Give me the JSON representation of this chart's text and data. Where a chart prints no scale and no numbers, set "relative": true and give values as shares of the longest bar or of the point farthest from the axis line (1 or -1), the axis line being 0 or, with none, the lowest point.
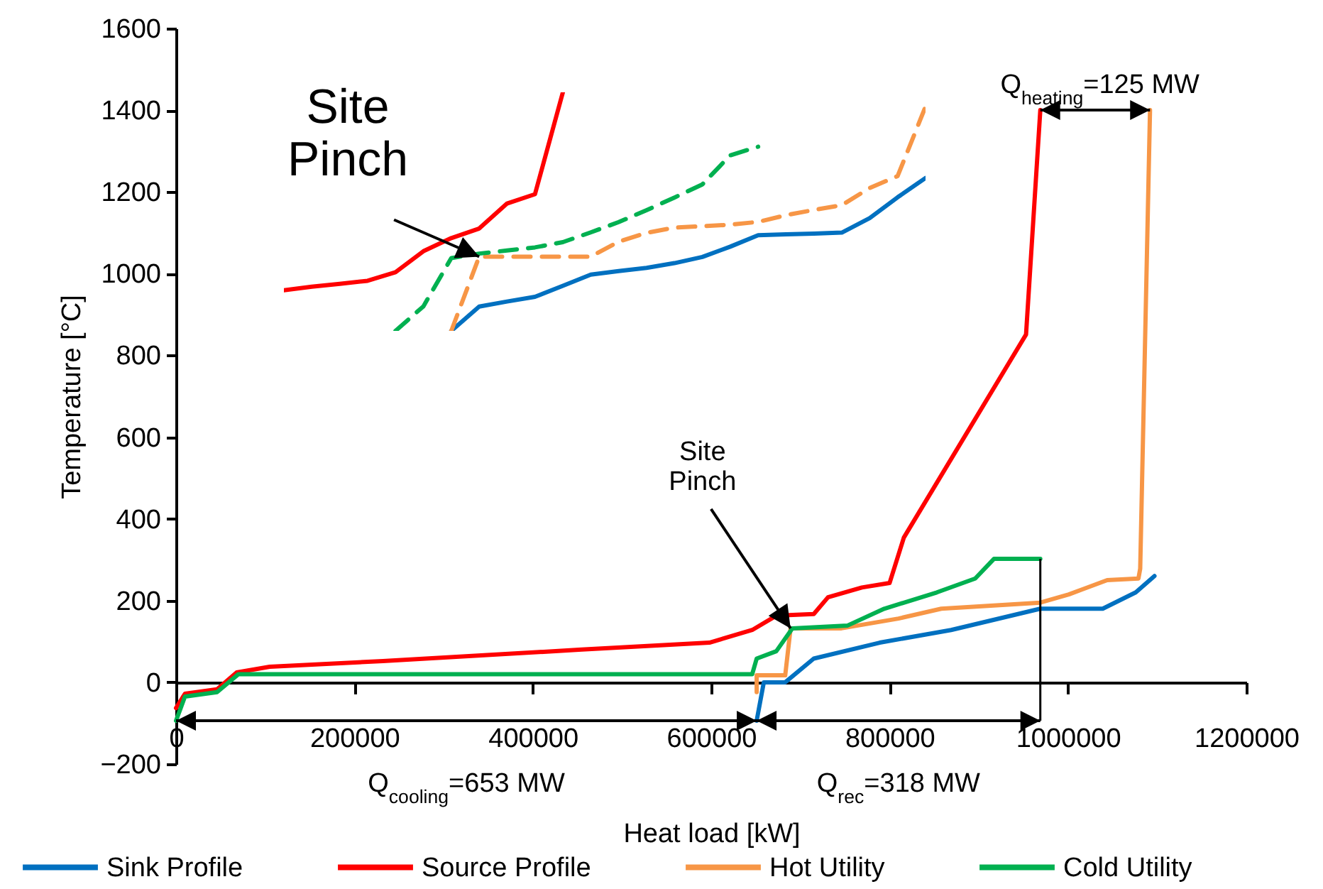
{
  "chart_data": [
    {
      "type": "line",
      "xlabel": "Heat load [kW]",
      "ylabel": "Temperature [°C]",
      "xlim": [
        0,
        1200000
      ],
      "xticks": [
        0,
        200000,
        400000,
        600000,
        800000,
        1000000,
        1200000
      ],
      "ylim": [
        -200,
        1600
      ],
      "yticks": [
        -200,
        0,
        200,
        400,
        600,
        800,
        1000,
        1200,
        1400,
        1600
      ],
      "legend": "bottom",
      "line_style": "solid",
      "series": [
        {
          "name": "Sink Profile",
          "color": "#0070c0",
          "x": [
            651000,
            659000,
            683000,
            715000,
            789000,
            869000,
            969000,
            1039000,
            1076000,
            1097000
          ],
          "values": [
            -94,
            0,
            0,
            58,
            97,
            128,
            180,
            180,
            220,
            260
          ]
        },
        {
          "name": "Source Profile",
          "color": "#ff0000",
          "x": [
            0,
            10000,
            46000,
            68000,
            105000,
            232000,
            455000,
            598000,
            646000,
            673000,
            715000,
            731000,
            769000,
            800000,
            816000,
            953000,
            969000
          ],
          "values": [
            -63,
            -28,
            -17,
            24,
            38,
            52,
            80,
            97,
            128,
            163,
            167,
            208,
            232,
            243,
            354,
            851,
            1400
          ]
        },
        {
          "name": "Hot Utility",
          "color": "#f79646",
          "x": [
            651000,
            651000,
            683000,
            689000,
            746000,
            810000,
            858000,
            969000,
            1001000,
            1044000,
            1079000,
            1081000,
            1092000
          ],
          "values": [
            -24,
            17,
            17,
            132,
            132,
            156,
            180,
            195,
            215,
            250,
            254,
            278,
            1400
          ]
        },
        {
          "name": "Cold Utility",
          "color": "#00b050",
          "x": [
            0,
            10000,
            46000,
            70000,
            646000,
            651000,
            673000,
            691000,
            753000,
            794000,
            853000,
            896000,
            917000,
            969000
          ],
          "values": [
            -94,
            -35,
            -24,
            20,
            20,
            58,
            76,
            132,
            139,
            180,
            220,
            254,
            302,
            302
          ]
        }
      ],
      "annotations": [
        "Q$_{cooling}$=653 MW",
        "Q$_{rec}$=318 MW",
        {
          "text": "Q$_{heating}$=125 MW",
          "x": 969000,
          "y": 1400
        },
        {
          "text": "Site Pinch",
          "x": 689000,
          "y": 132
        }
      ]
    },
    {
      "type": "line",
      "relative": true,
      "categories": [
        null,
        null,
        null,
        null,
        null,
        null,
        null,
        null,
        null,
        null,
        null,
        null,
        null,
        null,
        null,
        null,
        null,
        null,
        null,
        null,
        null,
        null,
        null,
        null
      ],
      "series": [
        {
          "color": "#0070c0",
          "line_style": "solid",
          "values": [
            null,
            null,
            null,
            null,
            null,
            null,
            0,
            0.102,
            0.123,
            0.143,
            0.189,
            0.236,
            0.251,
            0.264,
            0.284,
            0.31,
            0.353,
            0.401,
            0.405,
            0.408,
            0.412,
            0.473,
            0.56,
            0.641
          ]
        },
        {
          "color": "#ff0000",
          "line_style": "solid",
          "values": [
            0.17,
            0.185,
            0.197,
            0.21,
            0.246,
            0.334,
            0.389,
            0.429,
            0.534,
            0.573,
            1.0,
            null,
            null,
            null,
            null,
            null,
            null,
            null,
            null,
            null,
            null,
            null,
            null,
            null
          ]
        },
        {
          "color": "#f79646",
          "line_style": "dashed",
          "values": [
            null,
            null,
            null,
            null,
            null,
            null,
            0,
            0.311,
            0.311,
            0.311,
            0.311,
            0.311,
            0.374,
            0.411,
            0.433,
            0.439,
            0.445,
            0.457,
            0.485,
            0.507,
            0.527,
            0.599,
            0.649,
            0.94
          ]
        },
        {
          "color": "#00b050",
          "line_style": "dashed",
          "values": [
            null,
            null,
            null,
            null,
            0,
            0.103,
            0.305,
            0.324,
            0.337,
            0.35,
            0.372,
            0.413,
            0.456,
            0.506,
            0.559,
            0.614,
            0.736,
            0.772,
            null,
            null,
            null,
            null,
            null,
            null
          ]
        }
      ],
      "annotations": [
        "Site Pinch"
      ]
    }
  ]
}
